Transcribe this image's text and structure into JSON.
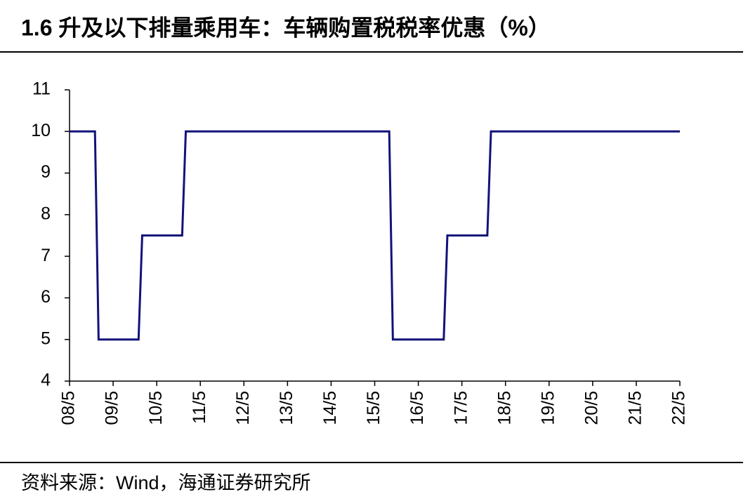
{
  "chart_data": {
    "type": "line",
    "title": "1.6 升及以下排量乘用车：车辆购置税税率优惠（%）",
    "source": "资料来源：Wind，海通证券研究所",
    "x": [
      "08/5",
      "08/12",
      "09/1",
      "09/12",
      "10/1",
      "10/12",
      "11/1",
      "15/9",
      "15/10",
      "16/12",
      "17/1",
      "17/12",
      "18/1",
      "22/5"
    ],
    "values": [
      10,
      10,
      5,
      5,
      7.5,
      7.5,
      10,
      10,
      5,
      5,
      7.5,
      7.5,
      10,
      10
    ],
    "color": "#12127a",
    "xticks": [
      "08/5",
      "09/5",
      "10/5",
      "11/5",
      "12/5",
      "13/5",
      "14/5",
      "15/5",
      "16/5",
      "17/5",
      "18/5",
      "19/5",
      "20/5",
      "21/5",
      "22/5"
    ],
    "ylim": [
      4,
      11
    ],
    "yticks": [
      4,
      5,
      6,
      7,
      8,
      9,
      10,
      11
    ],
    "grid": false
  }
}
